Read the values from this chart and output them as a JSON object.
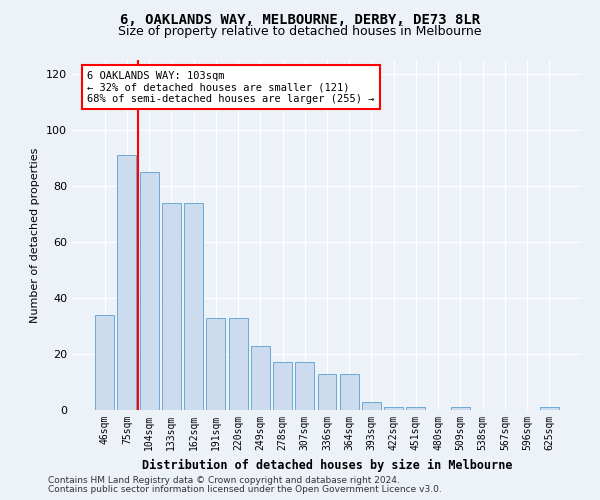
{
  "title": "6, OAKLANDS WAY, MELBOURNE, DERBY, DE73 8LR",
  "subtitle": "Size of property relative to detached houses in Melbourne",
  "xlabel": "Distribution of detached houses by size in Melbourne",
  "ylabel": "Number of detached properties",
  "categories": [
    "46sqm",
    "75sqm",
    "104sqm",
    "133sqm",
    "162sqm",
    "191sqm",
    "220sqm",
    "249sqm",
    "278sqm",
    "307sqm",
    "336sqm",
    "364sqm",
    "393sqm",
    "422sqm",
    "451sqm",
    "480sqm",
    "509sqm",
    "538sqm",
    "567sqm",
    "596sqm",
    "625sqm"
  ],
  "values": [
    34,
    91,
    85,
    74,
    74,
    33,
    33,
    23,
    17,
    17,
    13,
    13,
    3,
    1,
    1,
    0,
    1,
    0,
    0,
    0,
    1
  ],
  "bar_color": "#ccdcee",
  "bar_edgecolor": "#6aaad4",
  "background_color": "#edf2f9",
  "grid_color": "#ffffff",
  "red_line_x": 1.5,
  "annotation_box_text": "6 OAKLANDS WAY: 103sqm\n← 32% of detached houses are smaller (121)\n68% of semi-detached houses are larger (255) →",
  "ylim": [
    0,
    125
  ],
  "yticks": [
    0,
    20,
    40,
    60,
    80,
    100,
    120
  ],
  "footer1": "Contains HM Land Registry data © Crown copyright and database right 2024.",
  "footer2": "Contains public sector information licensed under the Open Government Licence v3.0.",
  "title_fontsize": 10,
  "subtitle_fontsize": 9,
  "ylabel_fontsize": 8,
  "xlabel_fontsize": 8.5,
  "tick_fontsize": 7,
  "annot_fontsize": 7.5,
  "footer_fontsize": 6.5
}
